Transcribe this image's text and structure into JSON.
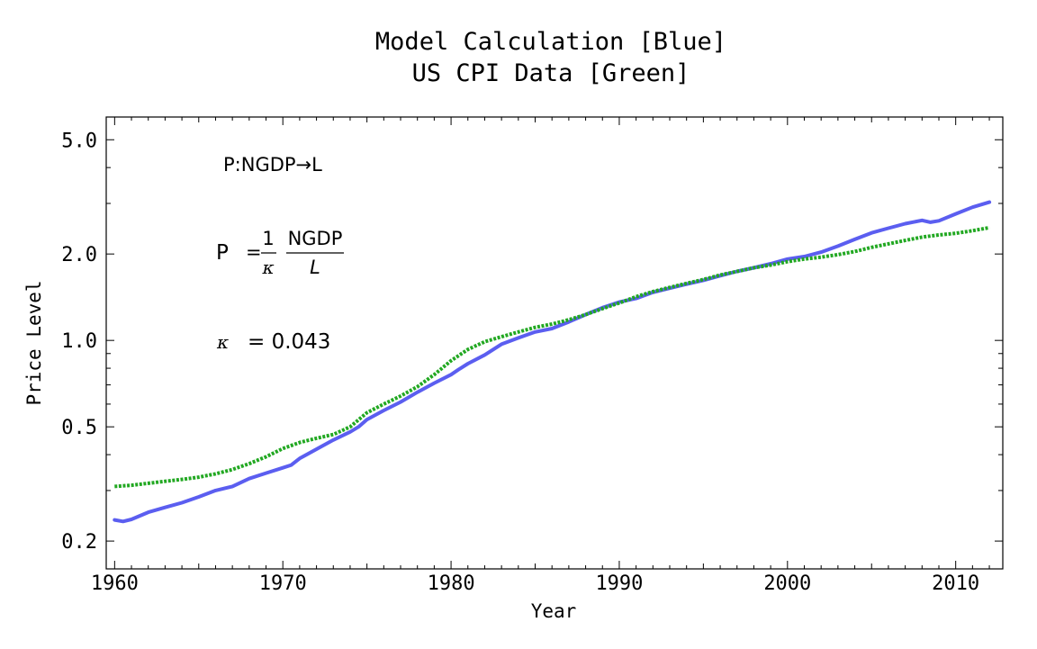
{
  "chart_data": {
    "type": "line",
    "title_lines": [
      "Model Calculation [Blue]",
      "US CPI Data [Green]"
    ],
    "xlabel": "Year",
    "ylabel": "Price Level",
    "xlim": [
      1959.5,
      2012.8
    ],
    "ylim": [
      0.16,
      6.0
    ],
    "yscale": "log",
    "x_ticks": [
      1960,
      1970,
      1980,
      1990,
      2000,
      2010
    ],
    "x_tick_labels": [
      "1960",
      "1970",
      "1980",
      "1990",
      "2000",
      "2010"
    ],
    "y_ticks": [
      0.2,
      0.5,
      1.0,
      2.0,
      5.0
    ],
    "y_tick_labels": [
      "0.2",
      "0.5",
      "1.0",
      "2.0",
      "5.0"
    ],
    "grid": false,
    "annotations": {
      "mapping": "P:NGDP→L",
      "eq_lhs": "P",
      "eq_equals": "=",
      "eq_frac1_num": "1",
      "eq_frac1_den": "κ",
      "eq_frac2_num": "NGDP",
      "eq_frac2_den": "L",
      "kappa_symbol": "κ",
      "kappa_value": "= 0.043"
    },
    "series": [
      {
        "name": "Model Calculation",
        "color": "#5b5ef0",
        "style": "solid",
        "x": [
          1960,
          1960.5,
          1961,
          1962,
          1963,
          1964,
          1965,
          1966,
          1967,
          1968,
          1969,
          1970,
          1970.5,
          1971,
          1972,
          1973,
          1974,
          1974.5,
          1975,
          1976,
          1977,
          1978,
          1979,
          1980,
          1980.5,
          1981,
          1982,
          1983,
          1984,
          1985,
          1986,
          1987,
          1988,
          1989,
          1990,
          1991,
          1992,
          1993,
          1994,
          1995,
          1996,
          1997,
          1998,
          1999,
          2000,
          2001,
          2002,
          2003,
          2004,
          2005,
          2006,
          2007,
          2008,
          2008.5,
          2009,
          2010,
          2011,
          2012
        ],
        "values": [
          0.237,
          0.234,
          0.238,
          0.252,
          0.262,
          0.272,
          0.285,
          0.3,
          0.31,
          0.33,
          0.345,
          0.36,
          0.368,
          0.388,
          0.418,
          0.45,
          0.48,
          0.5,
          0.53,
          0.57,
          0.61,
          0.66,
          0.71,
          0.76,
          0.795,
          0.83,
          0.89,
          0.97,
          1.02,
          1.07,
          1.1,
          1.16,
          1.23,
          1.3,
          1.36,
          1.4,
          1.47,
          1.52,
          1.57,
          1.62,
          1.68,
          1.74,
          1.79,
          1.85,
          1.92,
          1.96,
          2.03,
          2.13,
          2.25,
          2.37,
          2.46,
          2.55,
          2.62,
          2.58,
          2.61,
          2.76,
          2.91,
          3.03
        ]
      },
      {
        "name": "US CPI Data",
        "color": "#22a822",
        "style": "dotted",
        "x": [
          1960,
          1961,
          1962,
          1963,
          1964,
          1965,
          1966,
          1967,
          1968,
          1969,
          1970,
          1971,
          1972,
          1973,
          1974,
          1975,
          1976,
          1977,
          1978,
          1979,
          1980,
          1981,
          1982,
          1983,
          1984,
          1985,
          1986,
          1987,
          1988,
          1989,
          1990,
          1991,
          1992,
          1993,
          1994,
          1995,
          1996,
          1997,
          1998,
          1999,
          2000,
          2001,
          2002,
          2003,
          2004,
          2005,
          2006,
          2007,
          2008,
          2009,
          2010,
          2011,
          2012
        ],
        "values": [
          0.31,
          0.313,
          0.318,
          0.323,
          0.328,
          0.334,
          0.343,
          0.355,
          0.372,
          0.393,
          0.42,
          0.441,
          0.456,
          0.47,
          0.5,
          0.56,
          0.6,
          0.64,
          0.69,
          0.76,
          0.85,
          0.93,
          0.99,
          1.03,
          1.07,
          1.11,
          1.14,
          1.18,
          1.23,
          1.29,
          1.35,
          1.42,
          1.48,
          1.53,
          1.58,
          1.63,
          1.69,
          1.74,
          1.79,
          1.83,
          1.88,
          1.92,
          1.95,
          1.99,
          2.04,
          2.11,
          2.17,
          2.23,
          2.29,
          2.33,
          2.36,
          2.41,
          2.47
        ]
      }
    ]
  }
}
